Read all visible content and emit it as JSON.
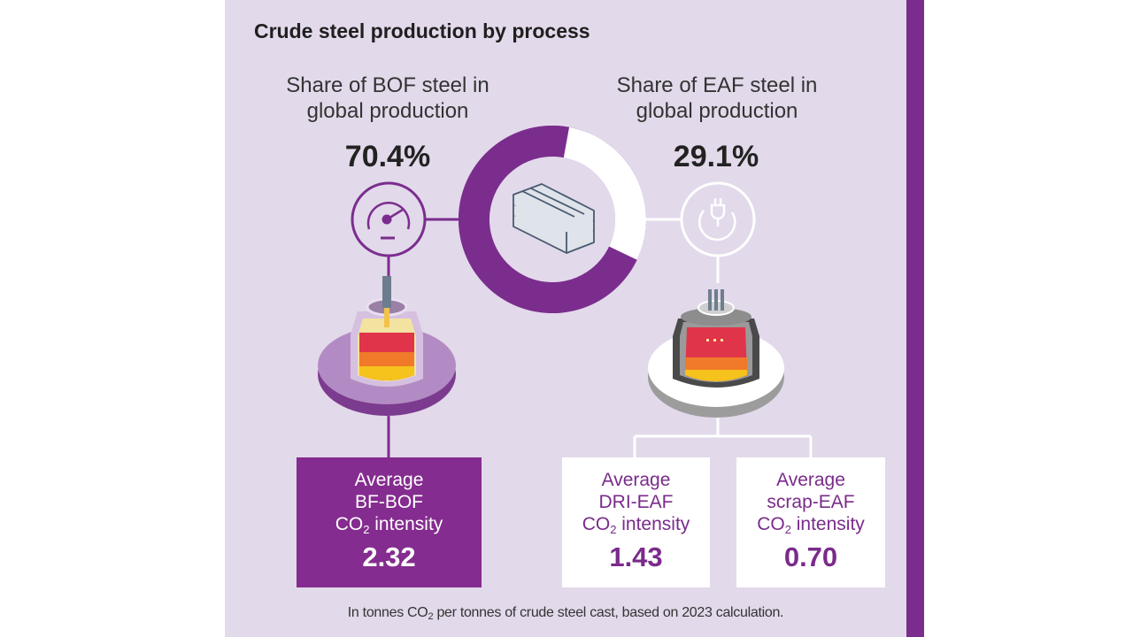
{
  "title": "Crude steel production by process",
  "bof": {
    "label_line1": "Share of BOF steel in",
    "label_line2": "global production",
    "share": "70.4%"
  },
  "eaf": {
    "label_line1": "Share of EAF steel in",
    "label_line2": "global production",
    "share": "29.1%"
  },
  "boxes": {
    "bof": {
      "line1": "Average",
      "line2": "BF-BOF",
      "co": "CO",
      "sub": "2",
      "intensity": " intensity",
      "value": "2.32"
    },
    "dri": {
      "line1": "Average",
      "line2": "DRI-EAF",
      "co": "CO",
      "sub": "2",
      "intensity": " intensity",
      "value": "1.43"
    },
    "scrap": {
      "line1": "Average",
      "line2": "scrap-EAF",
      "co": "CO",
      "sub": "2",
      "intensity": " intensity",
      "value": "0.70"
    }
  },
  "footnote": {
    "before": "In tonnes CO",
    "sub": "2",
    "after": " per tonnes of crude steel cast, based on 2023 calculation."
  },
  "chart_data": {
    "type": "pie",
    "title": "Crude steel production by process",
    "categories": [
      "BOF",
      "EAF"
    ],
    "values": [
      70.4,
      29.1
    ],
    "series_labels": [
      "70.4%",
      "29.1%"
    ],
    "intensities": [
      {
        "route": "BF-BOF",
        "value": 2.32
      },
      {
        "route": "DRI-EAF",
        "value": 1.43
      },
      {
        "route": "scrap-EAF",
        "value": 0.7
      }
    ]
  },
  "colors": {
    "panel": "#e2d9ea",
    "accent": "#7b2d8e",
    "bof_slice": "#7b2d8e",
    "eaf_slice": "#ffffff"
  },
  "icons": [
    "gauge-icon",
    "plug-icon",
    "steel-bars-icon",
    "bof-furnace-icon",
    "eaf-furnace-icon"
  ]
}
